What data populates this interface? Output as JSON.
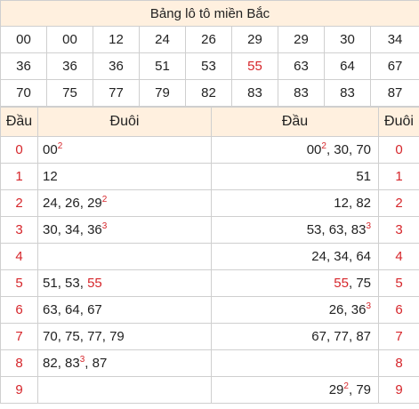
{
  "title": "Bảng lô tô miền Bắc",
  "numbers": [
    [
      "00",
      "00",
      "12",
      "24",
      "26",
      "29",
      "29",
      "30",
      "34"
    ],
    [
      "36",
      "36",
      "36",
      "51",
      "53",
      "55",
      "63",
      "64",
      "67"
    ],
    [
      "70",
      "75",
      "77",
      "79",
      "82",
      "83",
      "83",
      "83",
      "87"
    ]
  ],
  "highlight_numbers": [
    "55"
  ],
  "headers": {
    "dau": "Đầu",
    "duoi": "Đuôi",
    "dau2": "Đầu",
    "duoi2": "Đuôi"
  },
  "rows": [
    {
      "digit": "0",
      "left": [
        {
          "n": "00",
          "sup": "2"
        }
      ],
      "right": [
        {
          "n": "00",
          "sup": "2"
        },
        {
          "n": "30"
        },
        {
          "n": "70"
        }
      ]
    },
    {
      "digit": "1",
      "left": [
        {
          "n": "12"
        }
      ],
      "right": [
        {
          "n": "51"
        }
      ]
    },
    {
      "digit": "2",
      "left": [
        {
          "n": "24"
        },
        {
          "n": "26"
        },
        {
          "n": "29",
          "sup": "2"
        }
      ],
      "right": [
        {
          "n": "12"
        },
        {
          "n": "82"
        }
      ]
    },
    {
      "digit": "3",
      "left": [
        {
          "n": "30"
        },
        {
          "n": "34"
        },
        {
          "n": "36",
          "sup": "3"
        }
      ],
      "right": [
        {
          "n": "53"
        },
        {
          "n": "63"
        },
        {
          "n": "83",
          "sup": "3"
        }
      ]
    },
    {
      "digit": "4",
      "left": [],
      "right": [
        {
          "n": "24"
        },
        {
          "n": "34"
        },
        {
          "n": "64"
        }
      ]
    },
    {
      "digit": "5",
      "left": [
        {
          "n": "51"
        },
        {
          "n": "53"
        },
        {
          "n": "55",
          "red": true
        }
      ],
      "right": [
        {
          "n": "55",
          "red": true
        },
        {
          "n": "75"
        }
      ]
    },
    {
      "digit": "6",
      "left": [
        {
          "n": "63"
        },
        {
          "n": "64"
        },
        {
          "n": "67"
        }
      ],
      "right": [
        {
          "n": "26"
        },
        {
          "n": "36",
          "sup": "3"
        }
      ]
    },
    {
      "digit": "7",
      "left": [
        {
          "n": "70"
        },
        {
          "n": "75"
        },
        {
          "n": "77"
        },
        {
          "n": "79"
        }
      ],
      "right": [
        {
          "n": "67"
        },
        {
          "n": "77"
        },
        {
          "n": "87"
        }
      ]
    },
    {
      "digit": "8",
      "left": [
        {
          "n": "82"
        },
        {
          "n": "83",
          "sup": "3"
        },
        {
          "n": "87"
        }
      ],
      "right": []
    },
    {
      "digit": "9",
      "left": [],
      "right": [
        {
          "n": "29",
          "sup": "2"
        },
        {
          "n": "79"
        }
      ]
    }
  ],
  "colors": {
    "header_bg": "#fff0df",
    "accent_red": "#d6262b",
    "border": "#cfcfcf"
  }
}
